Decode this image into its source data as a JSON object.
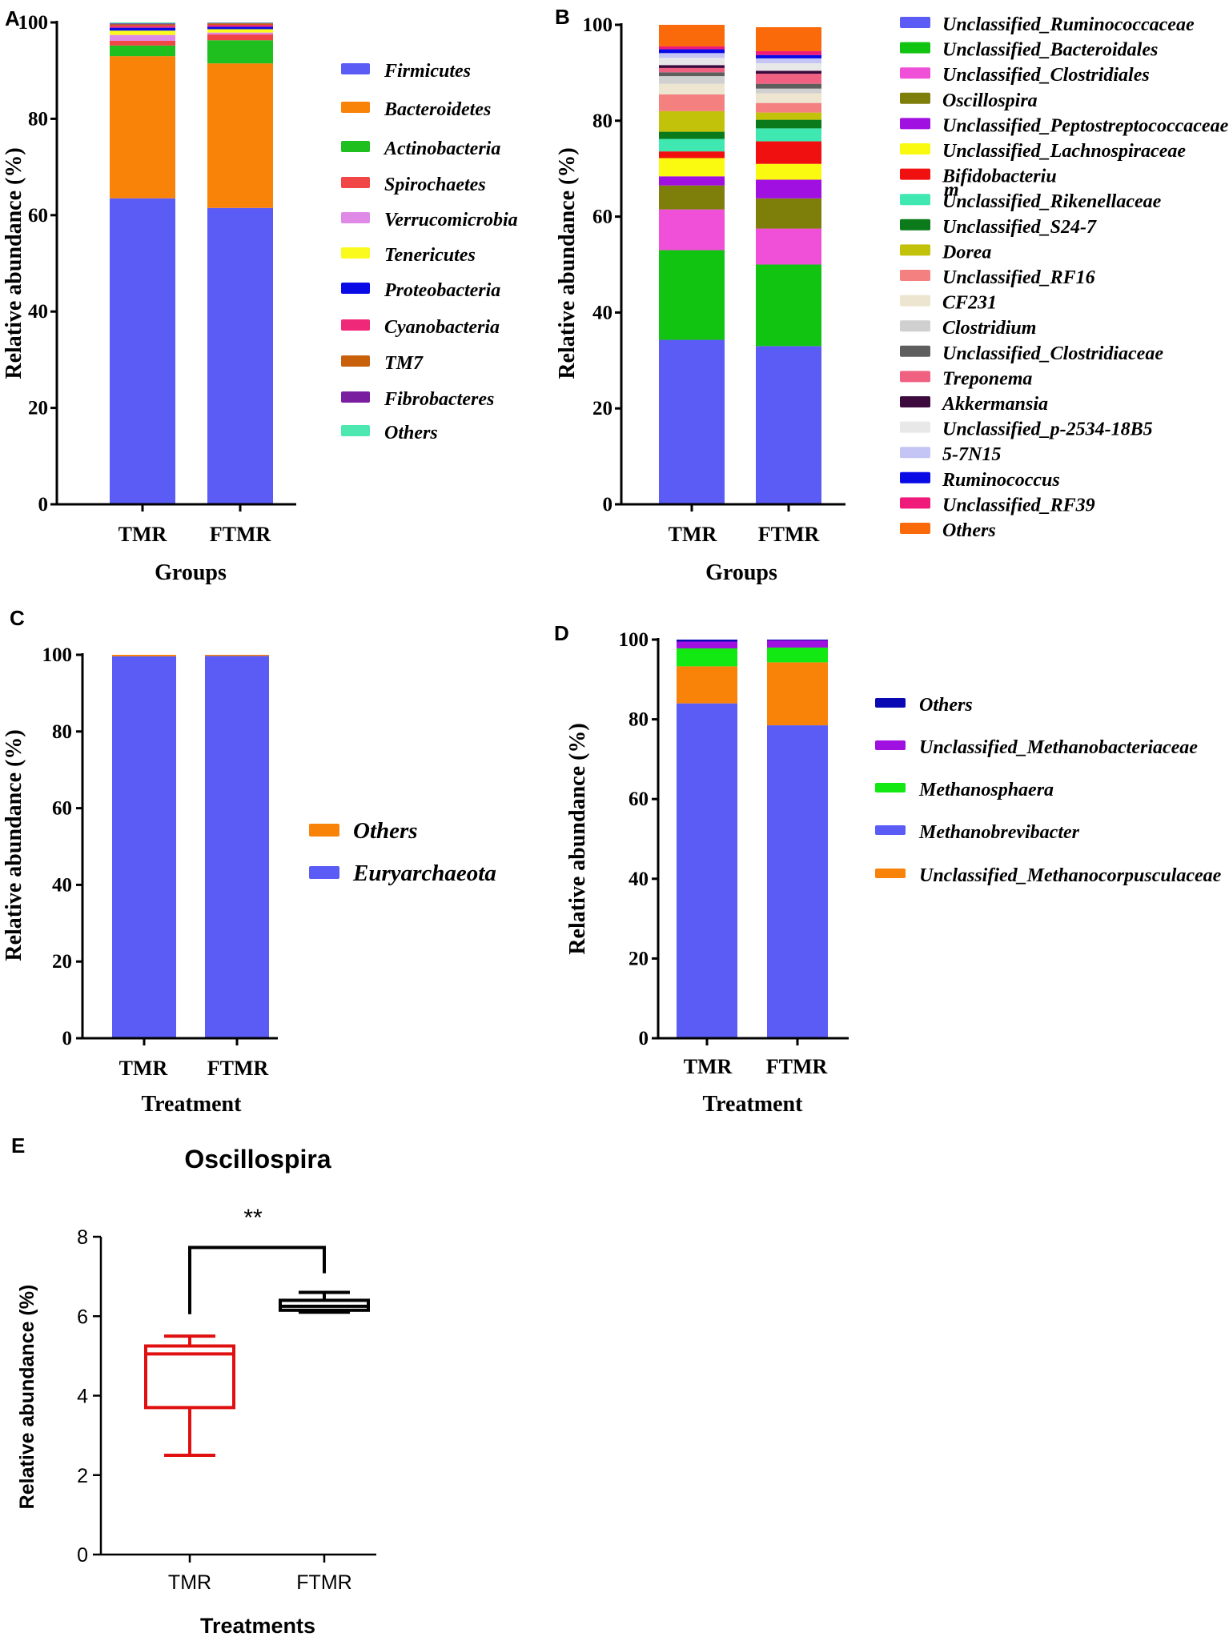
{
  "panels": {
    "A": "A",
    "B": "B",
    "C": "C",
    "D": "D",
    "E": "E"
  },
  "chart_data": [
    {
      "id": "A",
      "type": "bar",
      "stacked": true,
      "xlabel": "Groups",
      "ylabel": "Relative abundance (%)",
      "ylim": [
        0,
        100
      ],
      "yticks": [
        0,
        20,
        40,
        60,
        80,
        100
      ],
      "categories": [
        "TMR",
        "FTMR"
      ],
      "legend_position": "right",
      "series": [
        {
          "name": "Firmicutes",
          "color": "#5b5bf5",
          "values": [
            63.5,
            61.5
          ]
        },
        {
          "name": "Bacteroidetes",
          "color": "#f98209",
          "values": [
            29.5,
            30.0
          ]
        },
        {
          "name": "Actinobacteria",
          "color": "#1fbf1f",
          "values": [
            2.2,
            4.8
          ]
        },
        {
          "name": "Spirochaetes",
          "color": "#f04646",
          "values": [
            1.0,
            1.2
          ]
        },
        {
          "name": "Verrucomicrobia",
          "color": "#e08ae8",
          "values": [
            1.2,
            0.4
          ]
        },
        {
          "name": "Tenericutes",
          "color": "#fafa1e",
          "values": [
            0.9,
            0.7
          ]
        },
        {
          "name": "Proteobacteria",
          "color": "#0a0ae6",
          "values": [
            0.6,
            0.5
          ]
        },
        {
          "name": "Cyanobacteria",
          "color": "#f0287a",
          "values": [
            0.4,
            0.4
          ]
        },
        {
          "name": "TM7",
          "color": "#c8600c",
          "values": [
            0.3,
            0.3
          ]
        },
        {
          "name": "Fibrobacteres",
          "color": "#7a1ea0",
          "values": [
            0.2,
            0.1
          ]
        },
        {
          "name": "Others",
          "color": "#4de8b0",
          "values": [
            0.2,
            0.1
          ]
        }
      ]
    },
    {
      "id": "B",
      "type": "bar",
      "stacked": true,
      "xlabel": "Groups",
      "ylabel": "Relative abundance (%)",
      "ylim": [
        0,
        100
      ],
      "yticks": [
        0,
        20,
        40,
        60,
        80,
        100
      ],
      "categories": [
        "TMR",
        "FTMR"
      ],
      "legend_position": "right",
      "series": [
        {
          "name": "Unclassified_Ruminococcaceae",
          "color": "#5b5bf5",
          "values": [
            34.3,
            33.0
          ]
        },
        {
          "name": "Unclassified_Bacteroidales",
          "color": "#12c412",
          "values": [
            18.7,
            17.0
          ]
        },
        {
          "name": "Unclassified_Clostridiales",
          "color": "#f04fd8",
          "values": [
            8.5,
            7.5
          ]
        },
        {
          "name": "Oscillospira",
          "color": "#7e7e0a",
          "values": [
            5.0,
            6.3
          ]
        },
        {
          "name": "Unclassified_Peptostreptococcaceae",
          "color": "#a010e0",
          "values": [
            1.9,
            3.9
          ]
        },
        {
          "name": "Unclassified_Lachnospiraceae",
          "color": "#fafa10",
          "values": [
            3.8,
            3.3
          ]
        },
        {
          "name": "Bifidobacteriu\nm",
          "color": "#f01010",
          "values": [
            1.4,
            4.7
          ]
        },
        {
          "name": "Unclassified_Rikenellaceae",
          "color": "#3ee8b0",
          "values": [
            2.6,
            2.7
          ]
        },
        {
          "name": "Unclassified_S24-7",
          "color": "#0a7a1a",
          "values": [
            1.5,
            1.8
          ]
        },
        {
          "name": "Dorea",
          "color": "#c2c20a",
          "values": [
            4.3,
            1.5
          ]
        },
        {
          "name": "Unclassified_RF16",
          "color": "#f58080",
          "values": [
            3.5,
            2.0
          ]
        },
        {
          "name": "CF231",
          "color": "#ede5cf",
          "values": [
            2.2,
            2.0
          ]
        },
        {
          "name": "Clostridium",
          "color": "#d0d0d0",
          "values": [
            1.6,
            1.0
          ]
        },
        {
          "name": "Unclassified_Clostridiaceae",
          "color": "#5e5e5e",
          "values": [
            0.8,
            1.0
          ]
        },
        {
          "name": "Treponema",
          "color": "#f06080",
          "values": [
            0.9,
            2.1
          ]
        },
        {
          "name": "Akkermansia",
          "color": "#3c0a3c",
          "values": [
            0.6,
            0.6
          ]
        },
        {
          "name": "Unclassified_p-2534-18B5",
          "color": "#e8e8e8",
          "values": [
            1.5,
            1.6
          ]
        },
        {
          "name": "5-7N15",
          "color": "#c4c4f5",
          "values": [
            1.0,
            1.0
          ]
        },
        {
          "name": "Ruminococcus",
          "color": "#0a0ae6",
          "values": [
            0.8,
            0.7
          ]
        },
        {
          "name": "Unclassified_RF39",
          "color": "#f01a7a",
          "values": [
            0.6,
            0.8
          ]
        },
        {
          "name": "Others",
          "color": "#fa6a0a",
          "values": [
            4.5,
            5.0
          ]
        }
      ]
    },
    {
      "id": "C",
      "type": "bar",
      "stacked": true,
      "xlabel": "Treatment",
      "ylabel": "Relative abundance (%)",
      "ylim": [
        0,
        100
      ],
      "yticks": [
        0,
        20,
        40,
        60,
        80,
        100
      ],
      "categories": [
        "TMR",
        "FTMR"
      ],
      "legend_position": "right",
      "series": [
        {
          "name": "Euryarchaeota",
          "color": "#5b5bf5",
          "values": [
            99.6,
            99.7
          ]
        },
        {
          "name": "Others",
          "color": "#f98209",
          "values": [
            0.4,
            0.3
          ]
        }
      ]
    },
    {
      "id": "D",
      "type": "bar",
      "stacked": true,
      "xlabel": "Treatment",
      "ylabel": "Relative abundance (%)",
      "ylim": [
        0,
        100
      ],
      "yticks": [
        0,
        20,
        40,
        60,
        80,
        100
      ],
      "categories": [
        "TMR",
        "FTMR"
      ],
      "legend_position": "right",
      "legend_order": [
        "Others",
        "Unclassified_Methanobacteriaceae",
        "Methanosphaera",
        "Methanobrevibacter",
        "Unclassified_Methanocorpusculaceae"
      ],
      "series": [
        {
          "name": "Methanobrevibacter",
          "color": "#5b5bf5",
          "values": [
            84.0,
            78.5
          ]
        },
        {
          "name": "Unclassified_Methanocorpusculaceae",
          "color": "#f98209",
          "values": [
            9.3,
            15.8
          ]
        },
        {
          "name": "Methanosphaera",
          "color": "#12e812",
          "values": [
            4.5,
            3.7
          ]
        },
        {
          "name": "Unclassified_Methanobacteriaceae",
          "color": "#a010e0",
          "values": [
            1.7,
            1.8
          ]
        },
        {
          "name": "Others",
          "color": "#0a0ab4",
          "values": [
            0.5,
            0.2
          ]
        }
      ]
    },
    {
      "id": "E",
      "type": "box",
      "title": "Oscillospira",
      "xlabel": "Treatments",
      "ylabel": "Relative abundance (%)",
      "ylim": [
        0,
        8
      ],
      "yticks": [
        0,
        2,
        4,
        6,
        8
      ],
      "categories": [
        "TMR",
        "FTMR"
      ],
      "significance": "**",
      "boxes": [
        {
          "group": "TMR",
          "color": "#e01010",
          "min": 2.5,
          "q1": 3.7,
          "median": 5.05,
          "q3": 5.25,
          "max": 5.5
        },
        {
          "group": "FTMR",
          "color": "#000000",
          "min": 6.1,
          "q1": 6.15,
          "median": 6.25,
          "q3": 6.4,
          "max": 6.6
        }
      ]
    }
  ]
}
